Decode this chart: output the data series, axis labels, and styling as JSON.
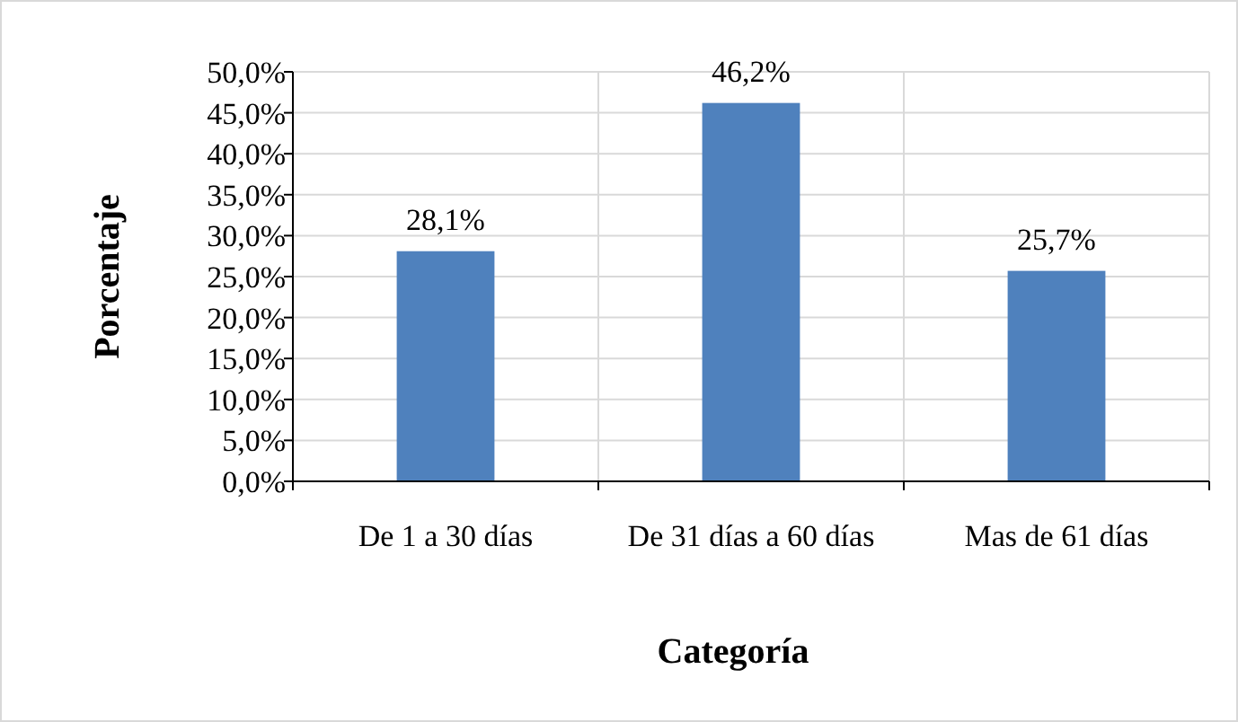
{
  "chart_data": {
    "type": "bar",
    "xlabel": "Categoría",
    "ylabel": "Porcentaje",
    "categories": [
      "De 1 a 30 días",
      "De 31 días a 60 días",
      "Mas de 61 días"
    ],
    "values": [
      28.1,
      46.2,
      25.7
    ],
    "color": "#4f81bd",
    "value_labels": [
      "28,1%",
      "46,2%",
      "25,7%"
    ],
    "ylim": [
      0,
      50
    ],
    "yticks": [
      {
        "value": 0,
        "label": "0,0%"
      },
      {
        "value": 5,
        "label": "5,0%"
      },
      {
        "value": 10,
        "label": "10,0%"
      },
      {
        "value": 15,
        "label": "15,0%"
      },
      {
        "value": 20,
        "label": "20,0%"
      },
      {
        "value": 25,
        "label": "25,0%"
      },
      {
        "value": 30,
        "label": "30,0%"
      },
      {
        "value": 35,
        "label": "35,0%"
      },
      {
        "value": 40,
        "label": "40,0%"
      },
      {
        "value": 45,
        "label": "45,0%"
      },
      {
        "value": 50,
        "label": "50,0%"
      }
    ],
    "grid": true
  }
}
